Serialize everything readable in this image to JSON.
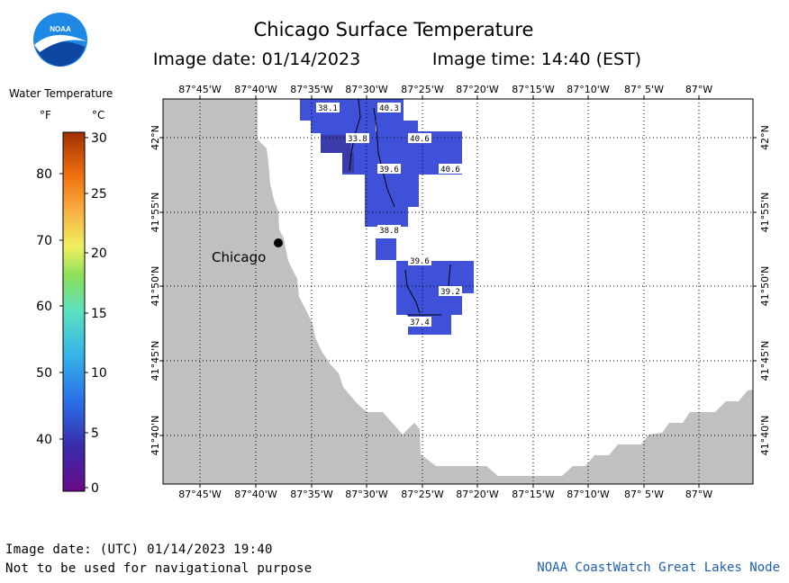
{
  "header": {
    "title": "Chicago Surface Temperature",
    "image_date": "Image date: 01/14/2023",
    "image_time": "Image time: 14:40 (EST)"
  },
  "legend": {
    "title": "Water Temperature",
    "unit_f": "°F",
    "unit_c": "°C",
    "f_ticks": [
      "80",
      "70",
      "60",
      "50",
      "40"
    ],
    "c_ticks": [
      "30",
      "25",
      "20",
      "15",
      "10",
      "5",
      "0"
    ]
  },
  "map": {
    "city_label": "Chicago",
    "lon_labels_top": [
      "87°45'W",
      "87°40'W",
      "87°35'W",
      "87°30'W",
      "87°25'W",
      "87°20'W",
      "87°15'W",
      "87°10'W",
      "87° 5'W",
      "87°W"
    ],
    "lon_labels_bottom": [
      "87°45'W",
      "87°40'W",
      "87°35'W",
      "87°30'W",
      "87°25'W",
      "87°20'W",
      "87°15'W",
      "87°10'W",
      "87° 5'W",
      "87°W"
    ],
    "lat_labels": [
      "42°N",
      "41°55'N",
      "41°50'N",
      "41°45'N",
      "41°40'N"
    ],
    "temperature_labels": [
      "38.1",
      "40.3",
      "33.8",
      "40.6",
      "39.6",
      "40.6",
      "38.8",
      "39.6",
      "39.2",
      "37.4"
    ]
  },
  "footer": {
    "utc_date": "Image date: (UTC) 01/14/2023  19:40",
    "disclaimer": "Not to be used for navigational purpose",
    "credit": "NOAA CoastWatch Great Lakes Node"
  },
  "colors": {
    "land": "#c0c0c0",
    "water": "#ffffff",
    "temp_blue": "#3f51d8",
    "temp_dark": "#3a3aa8",
    "credit": "#1f5fb0"
  }
}
